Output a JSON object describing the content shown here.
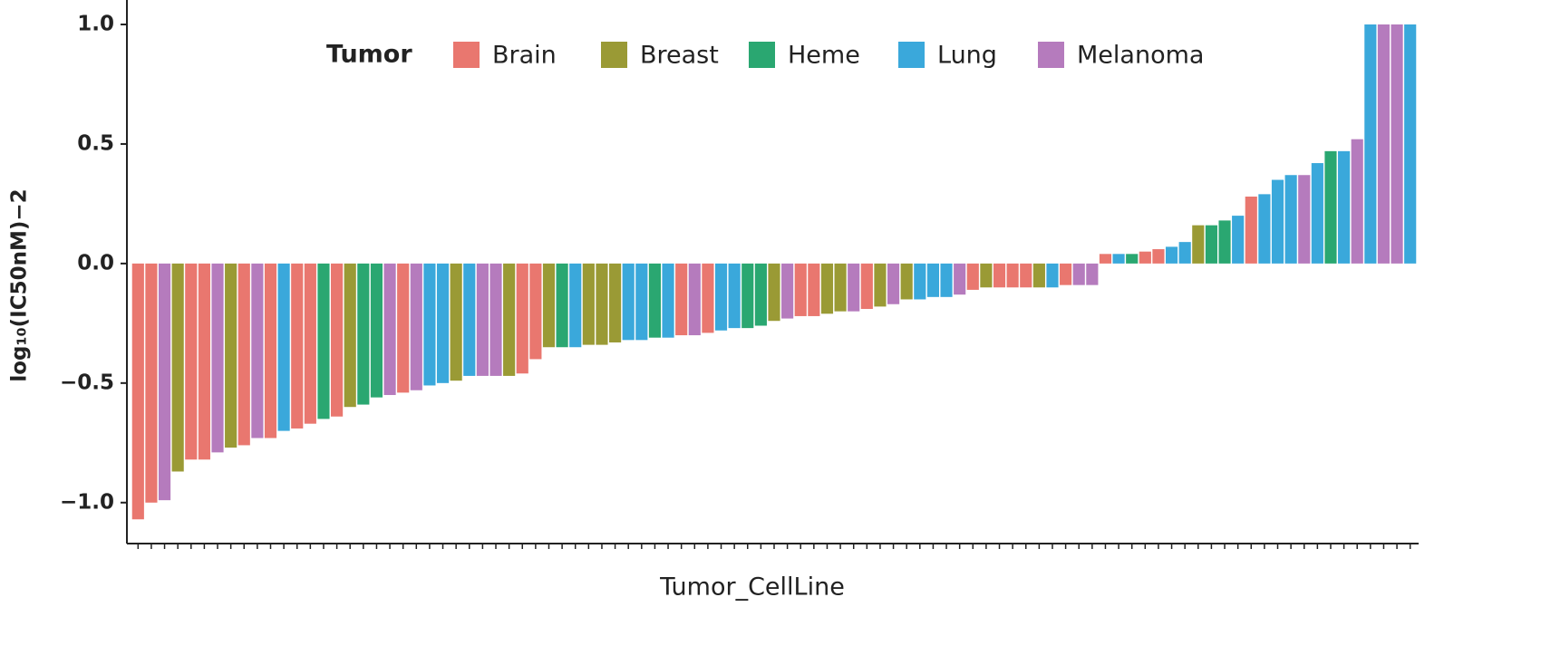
{
  "chart_data": {
    "type": "bar",
    "x_label": "Tumor_CellLine",
    "y_label": "log₁₀(IC50nM)−2",
    "legend_title": "Tumor",
    "groups": [
      {
        "name": "Brain",
        "color": "#e9776f"
      },
      {
        "name": "Breast",
        "color": "#9a9a35"
      },
      {
        "name": "Heme",
        "color": "#2aa771"
      },
      {
        "name": "Lung",
        "color": "#3aa8db"
      },
      {
        "name": "Melanoma",
        "color": "#b57bbd"
      }
    ],
    "categories": [
      null,
      null,
      null,
      null,
      null,
      null,
      null,
      null,
      null,
      null,
      null,
      null,
      null,
      null,
      null,
      null,
      null,
      null,
      null,
      null,
      null,
      null,
      null,
      null,
      null,
      null,
      null,
      null,
      null,
      null,
      null,
      null,
      null,
      null,
      null,
      null,
      null,
      null,
      null,
      null,
      null,
      null,
      null,
      null,
      null,
      null,
      null,
      null,
      null,
      null,
      null,
      null,
      null,
      null,
      null,
      null,
      null,
      null,
      null,
      null,
      null,
      null,
      null,
      null,
      null,
      null,
      null,
      null,
      null,
      null,
      null,
      null,
      null,
      null,
      null,
      null,
      null,
      null,
      null,
      null,
      null,
      null,
      null,
      null,
      null,
      null,
      null,
      null,
      null,
      null,
      null,
      null,
      null,
      null,
      null,
      null,
      null
    ],
    "tumor": [
      "Brain",
      "Brain",
      "Melanoma",
      "Breast",
      "Brain",
      "Brain",
      "Melanoma",
      "Breast",
      "Brain",
      "Melanoma",
      "Brain",
      "Lung",
      "Brain",
      "Brain",
      "Heme",
      "Brain",
      "Breast",
      "Heme",
      "Heme",
      "Melanoma",
      "Brain",
      "Melanoma",
      "Lung",
      "Lung",
      "Breast",
      "Lung",
      "Melanoma",
      "Melanoma",
      "Breast",
      "Brain",
      "Brain",
      "Breast",
      "Heme",
      "Lung",
      "Breast",
      "Breast",
      "Breast",
      "Lung",
      "Lung",
      "Heme",
      "Lung",
      "Brain",
      "Melanoma",
      "Brain",
      "Lung",
      "Lung",
      "Heme",
      "Heme",
      "Breast",
      "Melanoma",
      "Brain",
      "Brain",
      "Breast",
      "Breast",
      "Melanoma",
      "Brain",
      "Breast",
      "Melanoma",
      "Breast",
      "Lung",
      "Lung",
      "Lung",
      "Melanoma",
      "Brain",
      "Breast",
      "Brain",
      "Brain",
      "Brain",
      "Breast",
      "Lung",
      "Brain",
      "Melanoma",
      "Melanoma",
      "Brain",
      "Lung",
      "Heme",
      "Brain",
      "Brain",
      "Lung",
      "Lung",
      "Breast",
      "Heme",
      "Heme",
      "Lung",
      "Brain",
      "Lung",
      "Lung",
      "Lung",
      "Melanoma",
      "Lung",
      "Heme",
      "Lung",
      "Melanoma",
      "Lung",
      "Melanoma",
      "Melanoma",
      "Lung"
    ],
    "values": [
      -1.07,
      -1.0,
      -0.99,
      -0.87,
      -0.82,
      -0.82,
      -0.79,
      -0.77,
      -0.76,
      -0.73,
      -0.73,
      -0.7,
      -0.69,
      -0.67,
      -0.65,
      -0.64,
      -0.6,
      -0.59,
      -0.56,
      -0.55,
      -0.54,
      -0.53,
      -0.51,
      -0.5,
      -0.49,
      -0.47,
      -0.47,
      -0.47,
      -0.47,
      -0.46,
      -0.4,
      -0.35,
      -0.35,
      -0.35,
      -0.34,
      -0.34,
      -0.33,
      -0.32,
      -0.32,
      -0.31,
      -0.31,
      -0.3,
      -0.3,
      -0.29,
      -0.28,
      -0.27,
      -0.27,
      -0.26,
      -0.24,
      -0.23,
      -0.22,
      -0.22,
      -0.21,
      -0.2,
      -0.2,
      -0.19,
      -0.18,
      -0.17,
      -0.15,
      -0.15,
      -0.14,
      -0.14,
      -0.13,
      -0.11,
      -0.1,
      -0.1,
      -0.1,
      -0.1,
      -0.1,
      -0.1,
      -0.09,
      -0.09,
      -0.09,
      0.04,
      0.04,
      0.04,
      0.05,
      0.06,
      0.07,
      0.09,
      0.16,
      0.16,
      0.18,
      0.2,
      0.28,
      0.29,
      0.35,
      0.37,
      0.37,
      0.42,
      0.47,
      0.47,
      0.52,
      1.0,
      1.0,
      1.0,
      1.0
    ],
    "ylim": [
      -1.16,
      1.1
    ],
    "yticks": [
      {
        "value": -1,
        "label": "−1.0"
      },
      {
        "value": -0.5,
        "label": "−0.5"
      },
      {
        "value": 0,
        "label": "0.0"
      },
      {
        "value": 0.5,
        "label": "0.5"
      },
      {
        "value": 1,
        "label": "1.0"
      }
    ],
    "grid": false
  }
}
